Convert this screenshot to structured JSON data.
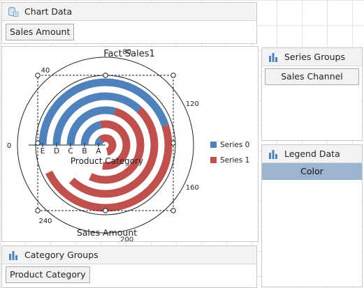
{
  "chart_data_panel": {
    "title": "Chart Data",
    "field": "Sales Amount"
  },
  "series_groups_panel": {
    "title": "Series Groups",
    "field": "Sales Channel"
  },
  "legend_data_panel": {
    "title": "Legend Data",
    "field": "Color"
  },
  "category_groups_panel": {
    "title": "Category Groups",
    "field": "Product Category"
  },
  "chart_data": {
    "type": "radial-bar",
    "title": "Fact Sales1",
    "xlabel": "Product Category",
    "ylabel": "Sales Amount",
    "categories": [
      "A",
      "B",
      "C",
      "D",
      "E"
    ],
    "angle_ticks": [
      "0",
      "40",
      "80",
      "120",
      "160",
      "200",
      "240"
    ],
    "range": [
      0,
      280
    ],
    "series": [
      {
        "name": "Series 0",
        "color": "#4f81bd",
        "values": [
          38,
          60,
          82,
          104,
          126
        ]
      },
      {
        "name": "Series 1",
        "color": "#c0504d",
        "values": [
          200,
          216,
          230,
          244,
          260
        ]
      }
    ],
    "legend": "right"
  }
}
